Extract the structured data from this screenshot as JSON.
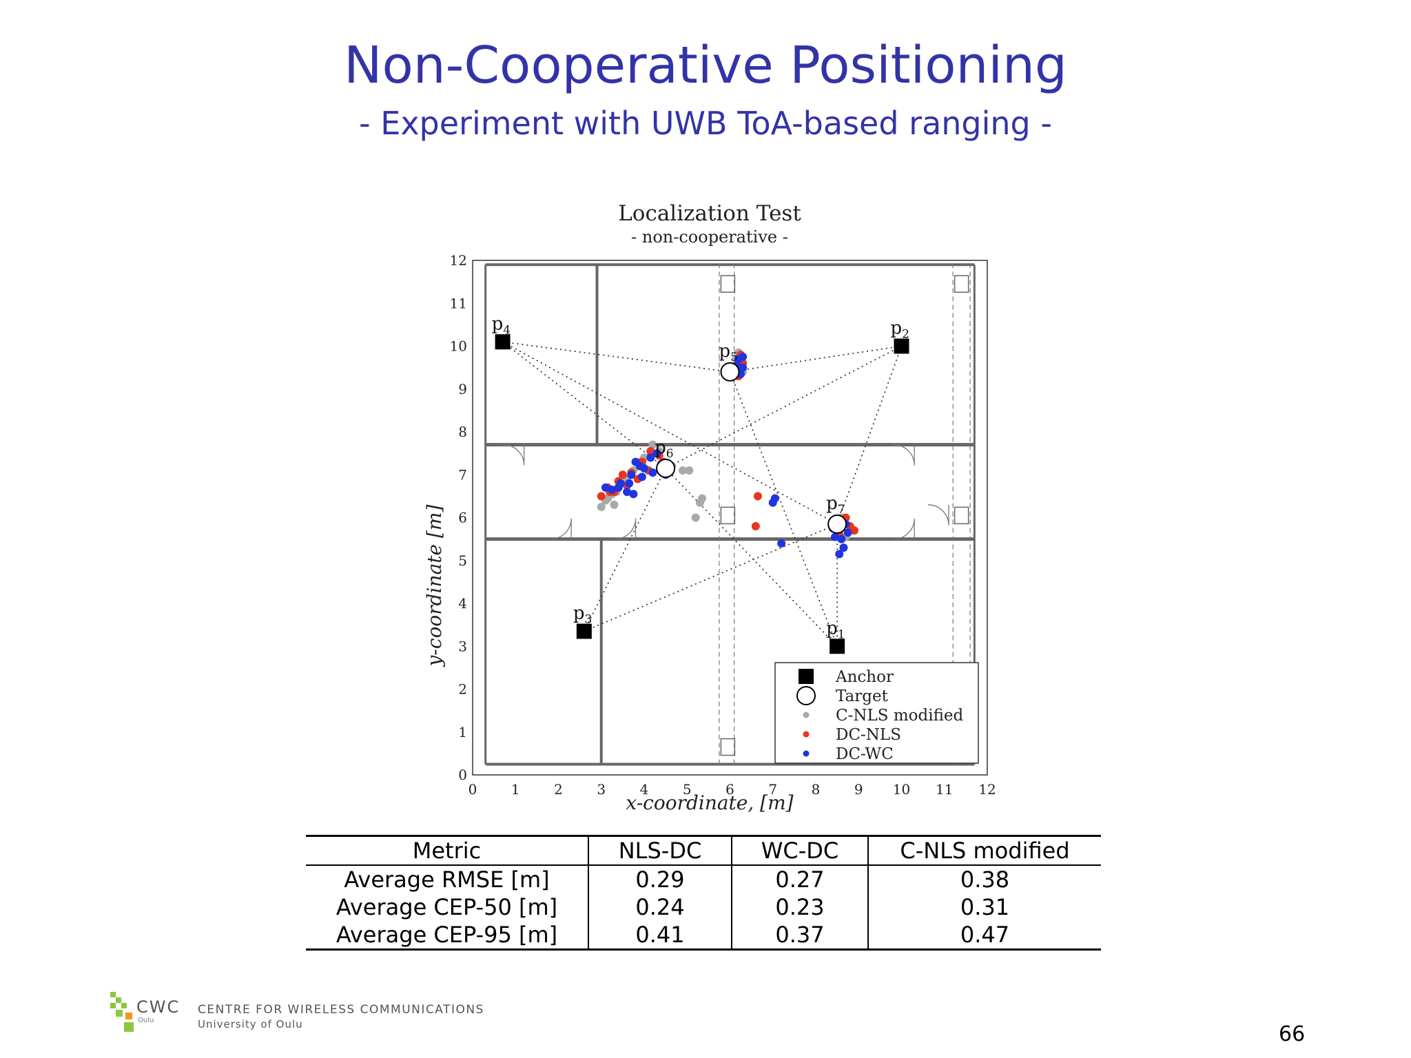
{
  "slide": {
    "title": "Non-Cooperative Positioning",
    "subtitle": "- Experiment with UWB ToA-based ranging -",
    "page_number": "66"
  },
  "colors": {
    "title": "#3333a8",
    "c_nls_modified": "#a9a9a9",
    "dc_nls": "#e8351c",
    "dc_wc": "#1f35e0",
    "logo_green": "#8dc63f",
    "logo_orange": "#f7941d"
  },
  "footer": {
    "logo_text": "CWC",
    "logo_sub": "Oulu",
    "org_name": "CENTRE FOR WIRELESS COMMUNICATIONS",
    "org_sub": "University of Oulu"
  },
  "chart_data": {
    "type": "scatter",
    "title": "Localization Test",
    "subtitle": "- non-cooperative -",
    "xlabel": "x-coordinate, [m]",
    "ylabel": "y-coordinate [m]",
    "xlim": [
      0,
      12
    ],
    "ylim": [
      0,
      12
    ],
    "xticks": [
      "0",
      "1",
      "2",
      "3",
      "4",
      "5",
      "6",
      "7",
      "8",
      "9",
      "10",
      "11",
      "12"
    ],
    "yticks": [
      "0",
      "1",
      "2",
      "3",
      "4",
      "5",
      "6",
      "7",
      "8",
      "9",
      "10",
      "11",
      "12"
    ],
    "legend_position": "bottom-right",
    "legend": [
      "Anchor",
      "Target",
      "C-NLS modified",
      "DC-NLS",
      "DC-WC"
    ],
    "anchors": [
      {
        "label": "p",
        "sub": "1",
        "x": 8.5,
        "y": 3.0
      },
      {
        "label": "p",
        "sub": "2",
        "x": 10.0,
        "y": 10.0
      },
      {
        "label": "p",
        "sub": "3",
        "x": 2.6,
        "y": 3.35
      },
      {
        "label": "p",
        "sub": "4",
        "x": 0.7,
        "y": 10.1
      }
    ],
    "targets": [
      {
        "label": "p",
        "sub": "5",
        "x": 6.0,
        "y": 9.4
      },
      {
        "label": "p",
        "sub": "6",
        "x": 4.5,
        "y": 7.15
      },
      {
        "label": "p",
        "sub": "7",
        "x": 8.5,
        "y": 5.85
      }
    ],
    "links": [
      {
        "anchor": 3,
        "target": 0
      },
      {
        "anchor": 1,
        "target": 0
      },
      {
        "anchor": 3,
        "target": 1
      },
      {
        "anchor": 1,
        "target": 1
      },
      {
        "anchor": 2,
        "target": 1
      },
      {
        "anchor": 0,
        "target": 1
      },
      {
        "anchor": 3,
        "target": 2
      },
      {
        "anchor": 1,
        "target": 2
      },
      {
        "anchor": 2,
        "target": 2
      },
      {
        "anchor": 0,
        "target": 2
      },
      {
        "anchor": 0,
        "target": 0
      }
    ],
    "series": [
      {
        "name": "C-NLS modified",
        "color": "#a9a9a9",
        "points": [
          [
            6.2,
            9.85
          ],
          [
            6.15,
            9.7
          ],
          [
            6.25,
            9.55
          ],
          [
            6.3,
            9.4
          ],
          [
            3.1,
            6.4
          ],
          [
            3.25,
            6.55
          ],
          [
            3.5,
            6.8
          ],
          [
            3.75,
            7.1
          ],
          [
            4.0,
            7.4
          ],
          [
            4.2,
            7.7
          ],
          [
            3.9,
            7.3
          ],
          [
            3.6,
            6.9
          ],
          [
            3.35,
            6.6
          ],
          [
            3.15,
            6.45
          ],
          [
            4.35,
            7.55
          ],
          [
            4.65,
            7.2
          ],
          [
            4.9,
            7.1
          ],
          [
            5.05,
            7.1
          ],
          [
            5.35,
            6.45
          ],
          [
            5.3,
            6.35
          ],
          [
            5.2,
            6.0
          ],
          [
            3.0,
            6.25
          ],
          [
            3.3,
            6.3
          ],
          [
            8.55,
            5.7
          ],
          [
            8.7,
            5.55
          ],
          [
            8.6,
            6.0
          ]
        ]
      },
      {
        "name": "DC-NLS",
        "color": "#e8351c",
        "points": [
          [
            6.3,
            9.6
          ],
          [
            6.25,
            9.8
          ],
          [
            6.2,
            9.3
          ],
          [
            3.0,
            6.5
          ],
          [
            3.2,
            6.6
          ],
          [
            3.4,
            6.85
          ],
          [
            3.7,
            7.05
          ],
          [
            3.95,
            7.3
          ],
          [
            4.15,
            7.55
          ],
          [
            4.35,
            7.45
          ],
          [
            4.1,
            7.1
          ],
          [
            3.85,
            6.9
          ],
          [
            3.6,
            6.75
          ],
          [
            3.3,
            6.6
          ],
          [
            4.45,
            7.3
          ],
          [
            3.15,
            6.7
          ],
          [
            3.5,
            7.0
          ],
          [
            6.65,
            6.5
          ],
          [
            6.6,
            5.8
          ],
          [
            8.5,
            5.95
          ],
          [
            8.7,
            6.0
          ],
          [
            8.8,
            5.8
          ],
          [
            8.55,
            5.6
          ],
          [
            8.9,
            5.7
          ]
        ]
      },
      {
        "name": "DC-WC",
        "color": "#1f35e0",
        "points": [
          [
            6.2,
            9.7
          ],
          [
            6.3,
            9.5
          ],
          [
            6.25,
            9.35
          ],
          [
            6.15,
            9.55
          ],
          [
            6.3,
            9.75
          ],
          [
            3.25,
            6.65
          ],
          [
            3.45,
            6.8
          ],
          [
            3.7,
            7.0
          ],
          [
            3.9,
            7.2
          ],
          [
            4.15,
            7.4
          ],
          [
            4.4,
            7.25
          ],
          [
            4.2,
            7.05
          ],
          [
            3.95,
            6.95
          ],
          [
            3.65,
            6.8
          ],
          [
            3.4,
            6.7
          ],
          [
            4.5,
            7.0
          ],
          [
            4.0,
            7.15
          ],
          [
            3.8,
            7.3
          ],
          [
            4.3,
            7.5
          ],
          [
            3.6,
            6.6
          ],
          [
            3.1,
            6.7
          ],
          [
            3.75,
            6.55
          ],
          [
            7.05,
            6.45
          ],
          [
            7.0,
            6.35
          ],
          [
            7.2,
            5.4
          ],
          [
            8.4,
            5.75
          ],
          [
            8.6,
            5.5
          ],
          [
            8.75,
            5.65
          ],
          [
            8.65,
            5.3
          ],
          [
            8.45,
            5.55
          ],
          [
            8.7,
            5.85
          ],
          [
            8.55,
            5.15
          ]
        ]
      }
    ]
  },
  "table": {
    "headers": [
      "Metric",
      "NLS-DC",
      "WC-DC",
      "C-NLS modified"
    ],
    "rows": [
      [
        "Average RMSE [m]",
        "0.29",
        "0.27",
        "0.38"
      ],
      [
        "Average CEP-50 [m]",
        "0.24",
        "0.23",
        "0.31"
      ],
      [
        "Average CEP-95 [m]",
        "0.41",
        "0.37",
        "0.47"
      ]
    ]
  }
}
